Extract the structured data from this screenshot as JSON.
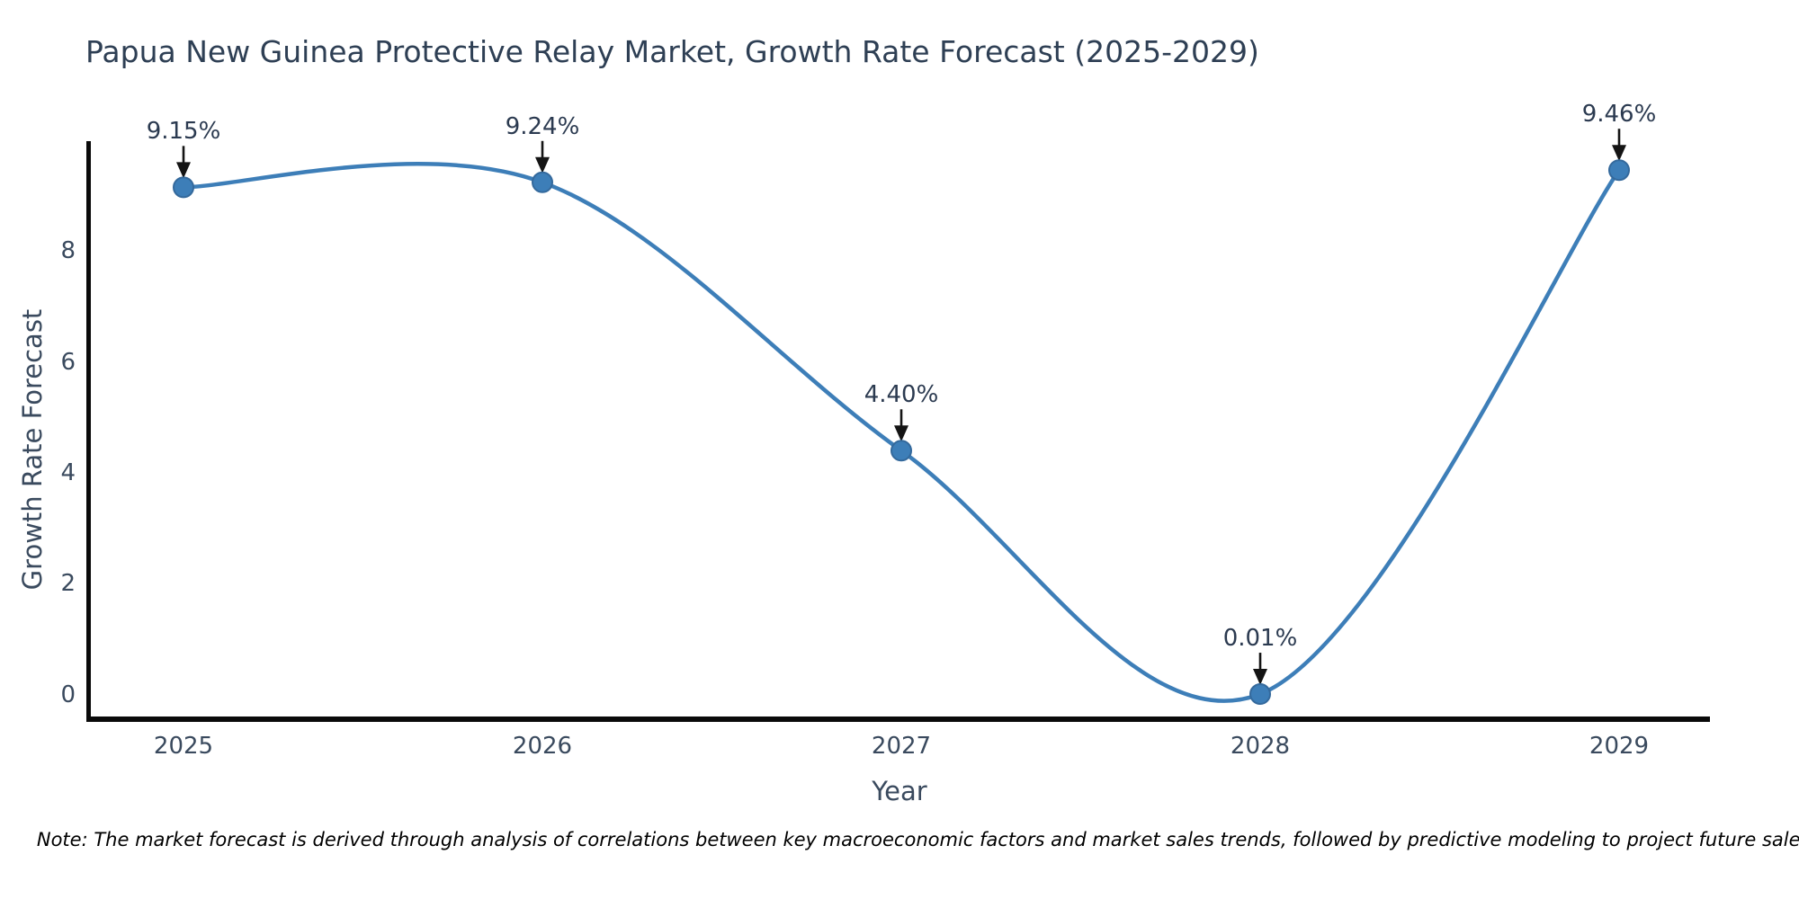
{
  "title": "Papua New Guinea Protective Relay Market, Growth Rate Forecast (2025-2029)",
  "note": "Note: The market forecast is derived through analysis of correlations between key macroeconomic factors and market sales trends, followed by predictive modeling to project future sales.",
  "chart_data": {
    "type": "line",
    "title": "Papua New Guinea Protective Relay Market, Growth Rate Forecast (2025-2029)",
    "xlabel": "Year",
    "ylabel": "Growth Rate Forecast",
    "x": [
      2025,
      2026,
      2027,
      2028,
      2029
    ],
    "series": [
      {
        "name": "Growth Rate Forecast",
        "values": [
          9.15,
          9.24,
          4.4,
          0.01,
          9.46
        ]
      }
    ],
    "point_labels": [
      "9.15%",
      "9.24%",
      "4.40%",
      "0.01%",
      "9.46%"
    ],
    "yticks": [
      0,
      2,
      4,
      6,
      8
    ],
    "ylim": [
      -0.5,
      10.5
    ],
    "grid": false,
    "legend_position": "none",
    "curve": "spline",
    "line_color": "#3d7eb8",
    "marker_color": "#3d7eb8",
    "marker_edge_color": "#34699c",
    "arrow_color": "#141414",
    "axis_color": "#0a0a0a",
    "text_color": "#2e3f54"
  }
}
